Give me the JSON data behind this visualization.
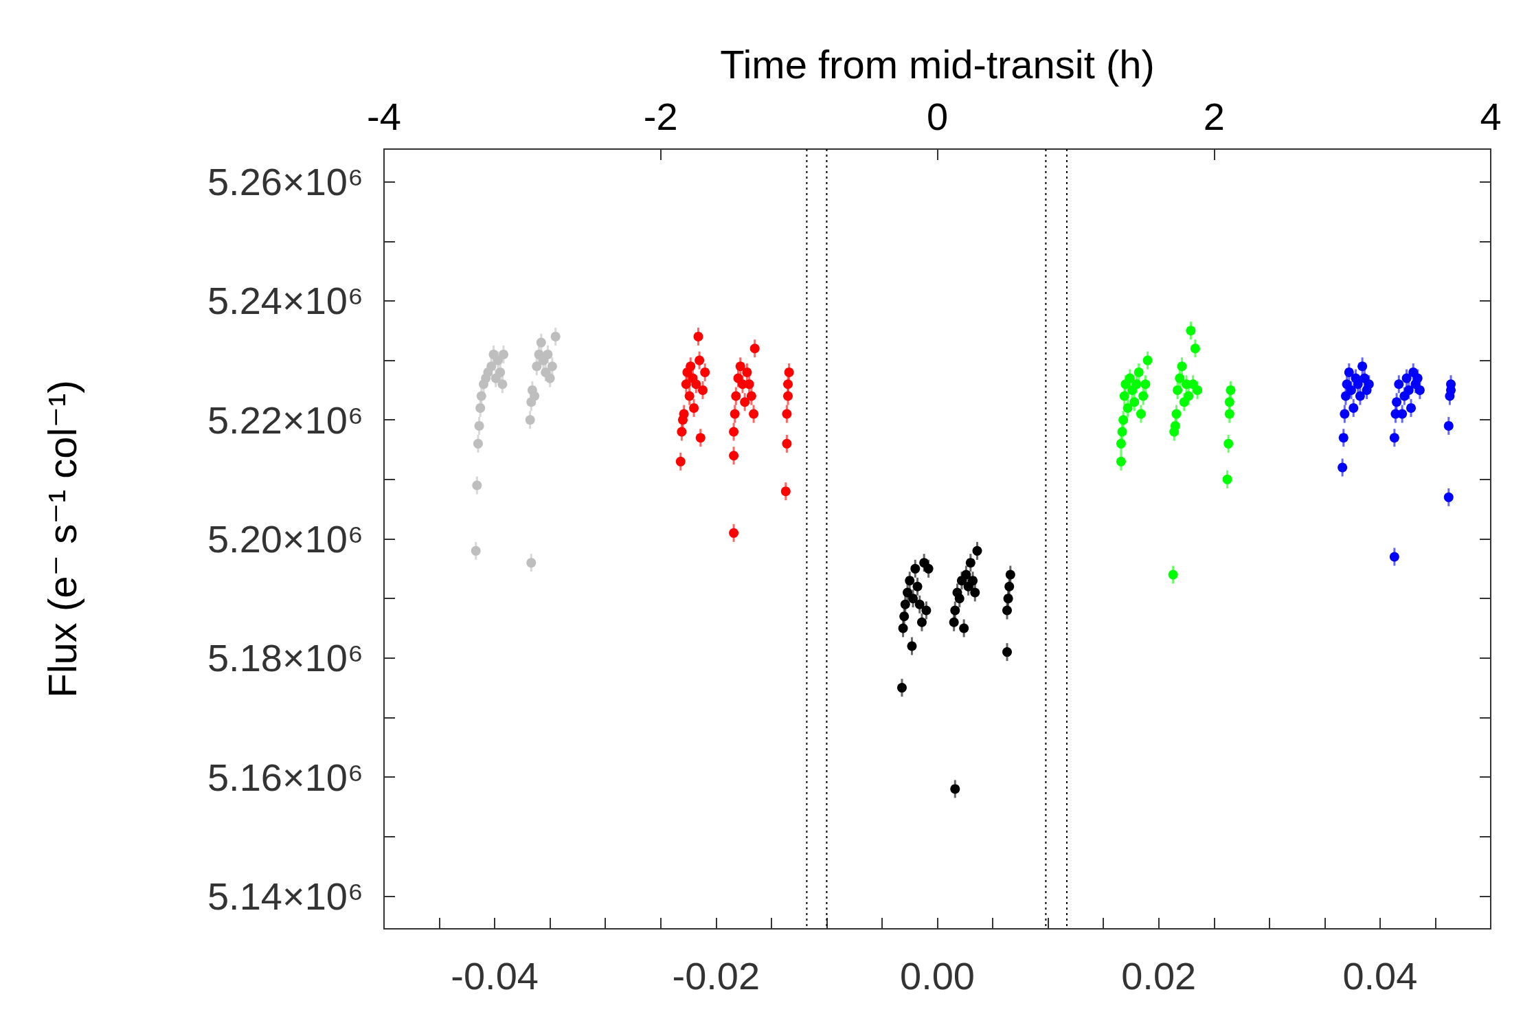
{
  "chart_data": {
    "type": "scatter",
    "x2label": "Time from mid-transit (h)",
    "ylabel": "Flux (e⁻ s⁻¹ col⁻¹)",
    "xlim": [
      -0.05,
      0.05
    ],
    "xticks": [
      {
        "value": -0.045,
        "label": null
      },
      {
        "value": -0.04,
        "label": "-0.04"
      },
      {
        "value": -0.035,
        "label": null
      },
      {
        "value": -0.03,
        "label": null
      },
      {
        "value": -0.025,
        "label": null
      },
      {
        "value": -0.02,
        "label": "-0.02"
      },
      {
        "value": -0.015,
        "label": null
      },
      {
        "value": -0.01,
        "label": null
      },
      {
        "value": -0.005,
        "label": null
      },
      {
        "value": 0,
        "label": "0.00"
      },
      {
        "value": 0.005,
        "label": null
      },
      {
        "value": 0.01,
        "label": null
      },
      {
        "value": 0.015,
        "label": null
      },
      {
        "value": 0.02,
        "label": "0.02"
      },
      {
        "value": 0.025,
        "label": null
      },
      {
        "value": 0.03,
        "label": null
      },
      {
        "value": 0.035,
        "label": null
      },
      {
        "value": 0.04,
        "label": "0.04"
      },
      {
        "value": 0.045,
        "label": null
      }
    ],
    "x2lim": [
      -4,
      4
    ],
    "x2ticks": [
      -4,
      -2,
      0,
      2,
      4
    ],
    "ylim": [
      5134500,
      5265500
    ],
    "yticks": [
      {
        "value": 5140000,
        "label": "5.14×10⁶"
      },
      {
        "value": 5150000,
        "label": null
      },
      {
        "value": 5160000,
        "label": "5.16×10⁶"
      },
      {
        "value": 5170000,
        "label": null
      },
      {
        "value": 5180000,
        "label": "5.18×10⁶"
      },
      {
        "value": 5190000,
        "label": null
      },
      {
        "value": 5200000,
        "label": "5.20×10⁶"
      },
      {
        "value": 5210000,
        "label": null
      },
      {
        "value": 5220000,
        "label": "5.22×10⁶"
      },
      {
        "value": 5230000,
        "label": null
      },
      {
        "value": 5240000,
        "label": "5.24×10⁶"
      },
      {
        "value": 5250000,
        "label": null
      },
      {
        "value": 5260000,
        "label": "5.26×10⁶"
      }
    ],
    "grid": false,
    "marker": "circle",
    "ref_lines": [
      {
        "axis": "x",
        "value": -0.0118,
        "color": "#000000",
        "line_style": "dotted"
      },
      {
        "axis": "x",
        "value": -0.01,
        "color": "#000000",
        "line_style": "dotted"
      },
      {
        "axis": "x",
        "value": 0.0098,
        "color": "#000000",
        "line_style": "dotted"
      },
      {
        "axis": "x",
        "value": 0.0117,
        "color": "#000000",
        "line_style": "dotted"
      }
    ],
    "series": [
      {
        "color": "#bebebe",
        "x": [
          -0.0417,
          -0.0416,
          -0.0415,
          -0.0414,
          -0.0413,
          -0.0412,
          -0.041,
          -0.0408,
          -0.0406,
          -0.0403,
          -0.0401,
          -0.0399,
          -0.0397,
          -0.0395,
          -0.0393,
          -0.0392,
          -0.0367,
          -0.0368,
          -0.0367,
          -0.0366,
          -0.0364,
          -0.0362,
          -0.036,
          -0.0358,
          -0.0356,
          -0.0354,
          -0.0352,
          -0.035,
          -0.0348,
          -0.0345
        ],
        "values": [
          5198000,
          5209000,
          5216000,
          5219000,
          5222000,
          5224000,
          5226000,
          5227000,
          5228000,
          5229000,
          5231000,
          5227000,
          5230000,
          5228000,
          5226000,
          5231000,
          5196000,
          5220000,
          5223000,
          5225000,
          5224000,
          5229000,
          5231000,
          5233000,
          5230000,
          5228000,
          5231000,
          5227000,
          5229000,
          5234000
        ],
        "errors": [
          1500,
          1500,
          1500,
          1500,
          1500,
          1500,
          1500,
          1500,
          1500,
          1500,
          1500,
          1500,
          1500,
          1500,
          1500,
          1500,
          1500,
          1500,
          1500,
          1500,
          1500,
          1500,
          1500,
          1500,
          1500,
          1500,
          1500,
          1500,
          1500,
          1500
        ]
      },
      {
        "color": "#ff0000",
        "x": [
          -0.0232,
          -0.0231,
          -0.023,
          -0.0229,
          -0.0227,
          -0.0226,
          -0.0224,
          -0.0223,
          -0.0221,
          -0.022,
          -0.0218,
          -0.0216,
          -0.0215,
          -0.0214,
          -0.0212,
          -0.021,
          -0.0184,
          -0.0184,
          -0.0184,
          -0.0183,
          -0.0182,
          -0.018,
          -0.0178,
          -0.0176,
          -0.0174,
          -0.0172,
          -0.017,
          -0.0168,
          -0.0166,
          -0.0165,
          -0.0137,
          -0.0136,
          -0.0136,
          -0.0135,
          -0.0135,
          -0.0134
        ],
        "values": [
          5213000,
          5218000,
          5220000,
          5221000,
          5226000,
          5228000,
          5224000,
          5229000,
          5227000,
          5222000,
          5226000,
          5234000,
          5230000,
          5217000,
          5225000,
          5228000,
          5201000,
          5214000,
          5218000,
          5221000,
          5224000,
          5227000,
          5229000,
          5226000,
          5223000,
          5228000,
          5226000,
          5224000,
          5221000,
          5232000,
          5208000,
          5216000,
          5221000,
          5224000,
          5226000,
          5228000
        ],
        "errors": [
          1500,
          1500,
          1500,
          1500,
          1500,
          1500,
          1500,
          1500,
          1500,
          1500,
          1500,
          1500,
          1500,
          1500,
          1500,
          1500,
          1500,
          1500,
          1500,
          1500,
          1500,
          1500,
          1500,
          1500,
          1500,
          1500,
          1500,
          1500,
          1500,
          1500,
          1500,
          1500,
          1500,
          1500,
          1500,
          1500
        ]
      },
      {
        "color": "#000000",
        "x": [
          -0.0032,
          -0.0031,
          -0.003,
          -0.0029,
          -0.0027,
          -0.0025,
          -0.0023,
          -0.0022,
          -0.002,
          -0.0018,
          -0.0016,
          -0.0014,
          -0.0012,
          -0.001,
          -0.0008,
          0.0016,
          0.0015,
          0.0016,
          0.0018,
          0.002,
          0.0022,
          0.0024,
          0.0026,
          0.0028,
          0.003,
          0.0032,
          0.0034,
          0.0036,
          0.0063,
          0.0063,
          0.0064,
          0.0065,
          0.0066
        ],
        "values": [
          5175000,
          5185000,
          5187000,
          5189000,
          5191000,
          5193000,
          5182000,
          5190000,
          5195000,
          5192000,
          5189000,
          5186000,
          5196000,
          5188000,
          5195000,
          5158000,
          5186000,
          5188000,
          5191000,
          5190000,
          5193000,
          5185000,
          5194000,
          5192000,
          5196000,
          5193000,
          5191000,
          5198000,
          5181000,
          5188000,
          5190000,
          5192000,
          5194000
        ],
        "errors": [
          1500,
          1500,
          1500,
          1500,
          1500,
          1500,
          1500,
          1500,
          1500,
          1500,
          1500,
          1500,
          1500,
          1500,
          1500,
          1500,
          1500,
          1500,
          1500,
          1500,
          1500,
          1500,
          1500,
          1500,
          1500,
          1500,
          1500,
          1500,
          1500,
          1500,
          1500,
          1500,
          1500
        ]
      },
      {
        "color": "#00ff00",
        "x": [
          0.0166,
          0.0166,
          0.0167,
          0.0168,
          0.0169,
          0.017,
          0.0172,
          0.0174,
          0.0176,
          0.0178,
          0.018,
          0.0182,
          0.0184,
          0.0186,
          0.0188,
          0.019,
          0.0213,
          0.0214,
          0.0215,
          0.0216,
          0.0217,
          0.0219,
          0.0221,
          0.0223,
          0.0225,
          0.0227,
          0.0229,
          0.0231,
          0.0233,
          0.0235,
          0.0262,
          0.0263,
          0.0264,
          0.0264,
          0.0265
        ],
        "values": [
          5213000,
          5216000,
          5218000,
          5220000,
          5224000,
          5226000,
          5222000,
          5227000,
          5225000,
          5223000,
          5226000,
          5228000,
          5221000,
          5224000,
          5226000,
          5230000,
          5194000,
          5218000,
          5219000,
          5221000,
          5225000,
          5227000,
          5229000,
          5223000,
          5226000,
          5224000,
          5235000,
          5226000,
          5232000,
          5225000,
          5210000,
          5216000,
          5221000,
          5223000,
          5225000
        ],
        "errors": [
          1500,
          1500,
          1500,
          1500,
          1500,
          1500,
          1500,
          1500,
          1500,
          1500,
          1500,
          1500,
          1500,
          1500,
          1500,
          1500,
          1500,
          1500,
          1500,
          1500,
          1500,
          1500,
          1500,
          1500,
          1500,
          1500,
          1500,
          1500,
          1500,
          1500,
          1500,
          1500,
          1500,
          1500,
          1500
        ]
      },
      {
        "color": "#0000ff",
        "x": [
          0.0366,
          0.0367,
          0.0368,
          0.0369,
          0.037,
          0.0372,
          0.0374,
          0.0376,
          0.0378,
          0.038,
          0.0382,
          0.0384,
          0.0386,
          0.0388,
          0.039,
          0.0413,
          0.0413,
          0.0414,
          0.0415,
          0.0417,
          0.042,
          0.0422,
          0.0424,
          0.0426,
          0.0428,
          0.043,
          0.0432,
          0.0434,
          0.0436,
          0.0462,
          0.0462,
          0.0463,
          0.0464,
          0.0464
        ],
        "values": [
          5212000,
          5217000,
          5221000,
          5224000,
          5226000,
          5228000,
          5225000,
          5222000,
          5227000,
          5226000,
          5224000,
          5229000,
          5227000,
          5225000,
          5226000,
          5197000,
          5217000,
          5221000,
          5223000,
          5226000,
          5221000,
          5224000,
          5227000,
          5225000,
          5222000,
          5228000,
          5226000,
          5227000,
          5225000,
          5207000,
          5219000,
          5224000,
          5225000,
          5226000
        ],
        "errors": [
          1500,
          1500,
          1500,
          1500,
          1500,
          1500,
          1500,
          1500,
          1500,
          1500,
          1500,
          1500,
          1500,
          1500,
          1500,
          1500,
          1500,
          1500,
          1500,
          1500,
          1500,
          1500,
          1500,
          1500,
          1500,
          1500,
          1500,
          1500,
          1500,
          1500,
          1500,
          1500,
          1500,
          1500
        ]
      }
    ]
  }
}
